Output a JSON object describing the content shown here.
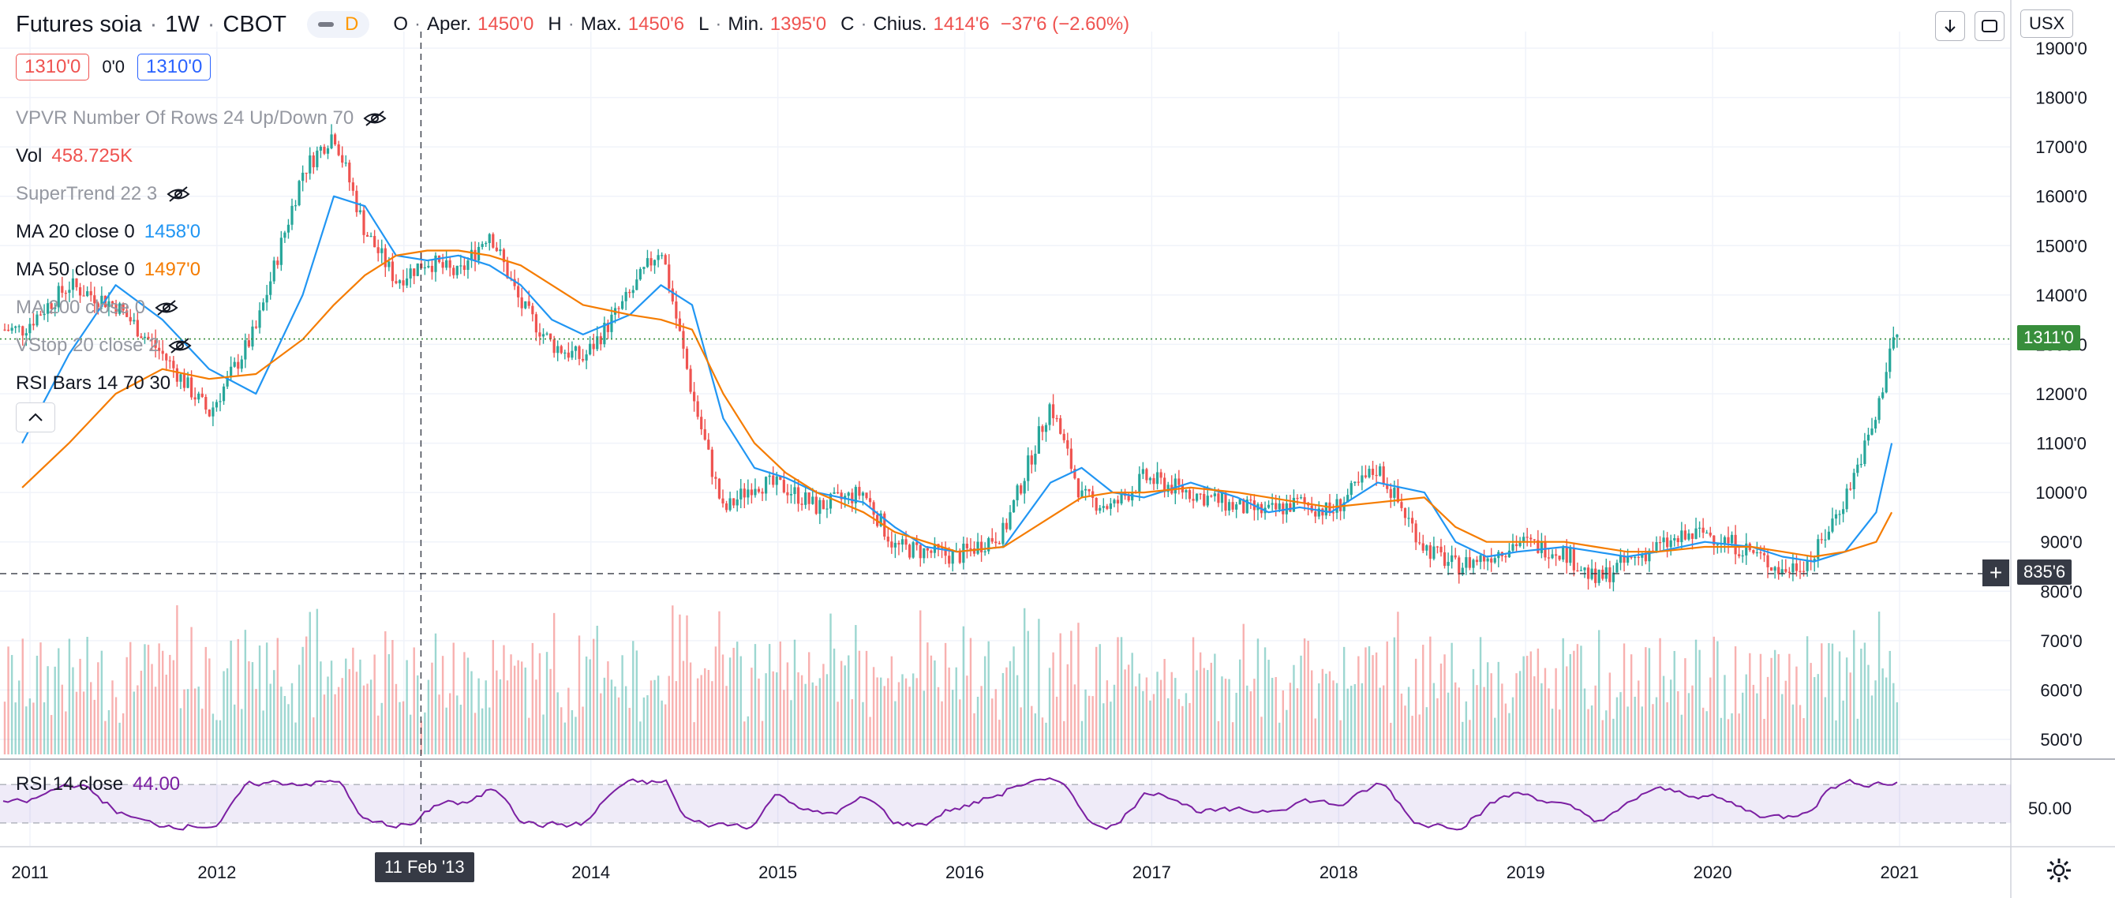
{
  "header": {
    "symbol": "Futures soia",
    "interval": "1W",
    "exchange": "CBOT",
    "mode_badge": "D",
    "ohlc": {
      "o_label": "O",
      "open_label": "Aper.",
      "open": "1450'0",
      "h_label": "H",
      "high_label": "Max.",
      "high": "1450'6",
      "l_label": "L",
      "low_label": "Min.",
      "low": "1395'0",
      "c_label": "C",
      "close_label": "Chius.",
      "close": "1414'6",
      "change": "−37'6 (−2.60%)"
    },
    "trade": {
      "sell": "1310'0",
      "spread": "0'0",
      "buy": "1310'0"
    },
    "currency": "USX"
  },
  "indicators": [
    {
      "label": "VPVR Number Of Rows 24 Up/Down 70",
      "value": "",
      "hidden": true
    },
    {
      "label": "Vol",
      "value": "458.725K",
      "hidden": false,
      "value_color": "#ef5350"
    },
    {
      "label": "SuperTrend 22 3",
      "value": "",
      "hidden": true
    },
    {
      "label": "MA 20 close 0",
      "value": "1458'0",
      "hidden": false,
      "value_color": "#2196f3"
    },
    {
      "label": "MA 50 close 0",
      "value": "1497'0",
      "hidden": false,
      "value_color": "#f57c00"
    },
    {
      "label": "MA 200 close 0",
      "value": "",
      "hidden": true
    },
    {
      "label": "VStop 20 close 2",
      "value": "",
      "hidden": true
    },
    {
      "label": "RSI Bars 14 70 30",
      "value": "",
      "hidden": false
    }
  ],
  "rsi_pane": {
    "label": "RSI 14 close",
    "value": "44.00",
    "level_label": "50.00"
  },
  "price_axis": [
    "1900'0",
    "1800'0",
    "1700'0",
    "1600'0",
    "1500'0",
    "1400'0",
    "1300'0",
    "1200'0",
    "1100'0",
    "1000'0",
    "900'0",
    "800'0",
    "700'0",
    "600'0",
    "500'0"
  ],
  "time_axis": [
    "2011",
    "2012",
    "2013",
    "2014",
    "2015",
    "2016",
    "2017",
    "2018",
    "2019",
    "2020",
    "2021"
  ],
  "last_price_tag": "1311'0",
  "crosshair_price_tag": "835'6",
  "crosshair_time_tag": "11 Feb '13",
  "colors": {
    "up": "#26a69a",
    "down": "#ef5350",
    "ma20": "#2196f3",
    "ma50": "#f57c00",
    "rsi": "#7b1fa2",
    "last_price": "#388e3c"
  },
  "icons": [
    "eye-off-icon",
    "arrow-down-icon",
    "fullscreen-icon",
    "collapse-icon",
    "gear-icon",
    "crosshair-plus-icon"
  ],
  "chart_data": {
    "type": "candlestick",
    "title": "Futures soia · 1W · CBOT",
    "x": [
      "2010-12",
      "2011-03",
      "2011-06",
      "2011-09",
      "2011-12",
      "2012-03",
      "2012-06",
      "2012-08",
      "2012-10",
      "2012-12",
      "2013-02",
      "2013-04",
      "2013-06",
      "2013-08",
      "2013-10",
      "2013-12",
      "2014-03",
      "2014-05",
      "2014-07",
      "2014-09",
      "2014-11",
      "2015-01",
      "2015-03",
      "2015-06",
      "2015-08",
      "2015-10",
      "2015-12",
      "2016-03",
      "2016-06",
      "2016-08",
      "2016-10",
      "2016-12",
      "2017-03",
      "2017-06",
      "2017-08",
      "2017-10",
      "2017-12",
      "2018-03",
      "2018-06",
      "2018-08",
      "2018-10",
      "2018-12",
      "2019-03",
      "2019-05",
      "2019-07",
      "2019-09",
      "2019-12",
      "2020-03",
      "2020-05",
      "2020-07",
      "2020-09",
      "2020-11",
      "2020-12"
    ],
    "series": [
      {
        "name": "Price",
        "values": [
          1330,
          1420,
          1380,
          1280,
          1160,
          1330,
          1650,
          1730,
          1530,
          1430,
          1470,
          1440,
          1530,
          1380,
          1300,
          1270,
          1400,
          1500,
          1200,
          960,
          1020,
          1010,
          970,
          1000,
          890,
          880,
          870,
          920,
          1180,
          990,
          970,
          1030,
          1000,
          970,
          960,
          980,
          960,
          1050,
          890,
          850,
          870,
          900,
          880,
          820,
          860,
          890,
          920,
          880,
          840,
          870,
          990,
          1150,
          1311
        ]
      },
      {
        "name": "MA 20",
        "values": [
          1100,
          1280,
          1420,
          1350,
          1250,
          1200,
          1400,
          1600,
          1580,
          1480,
          1470,
          1480,
          1460,
          1420,
          1350,
          1320,
          1360,
          1420,
          1380,
          1150,
          1050,
          1030,
          1000,
          980,
          930,
          890,
          880,
          890,
          1020,
          1050,
          1000,
          990,
          1020,
          990,
          960,
          970,
          960,
          1020,
          1000,
          900,
          870,
          880,
          890,
          880,
          870,
          880,
          900,
          890,
          870,
          860,
          880,
          960,
          1100
        ]
      },
      {
        "name": "MA 50",
        "values": [
          1010,
          1100,
          1200,
          1250,
          1230,
          1240,
          1310,
          1380,
          1440,
          1480,
          1490,
          1490,
          1480,
          1460,
          1420,
          1380,
          1360,
          1350,
          1330,
          1200,
          1100,
          1040,
          1000,
          960,
          920,
          900,
          880,
          890,
          950,
          990,
          1000,
          1000,
          1010,
          1000,
          990,
          980,
          970,
          980,
          990,
          930,
          900,
          900,
          900,
          890,
          880,
          880,
          890,
          890,
          880,
          870,
          880,
          900,
          960
        ]
      }
    ],
    "volume": {
      "name": "Vol",
      "ylim": [
        450,
        850
      ]
    },
    "rsi": {
      "name": "RSI 14 close",
      "last": 44.0,
      "levels": [
        70,
        50,
        30
      ]
    },
    "ylim": [
      800,
      1900
    ],
    "grid": true,
    "legend": "top-left"
  }
}
